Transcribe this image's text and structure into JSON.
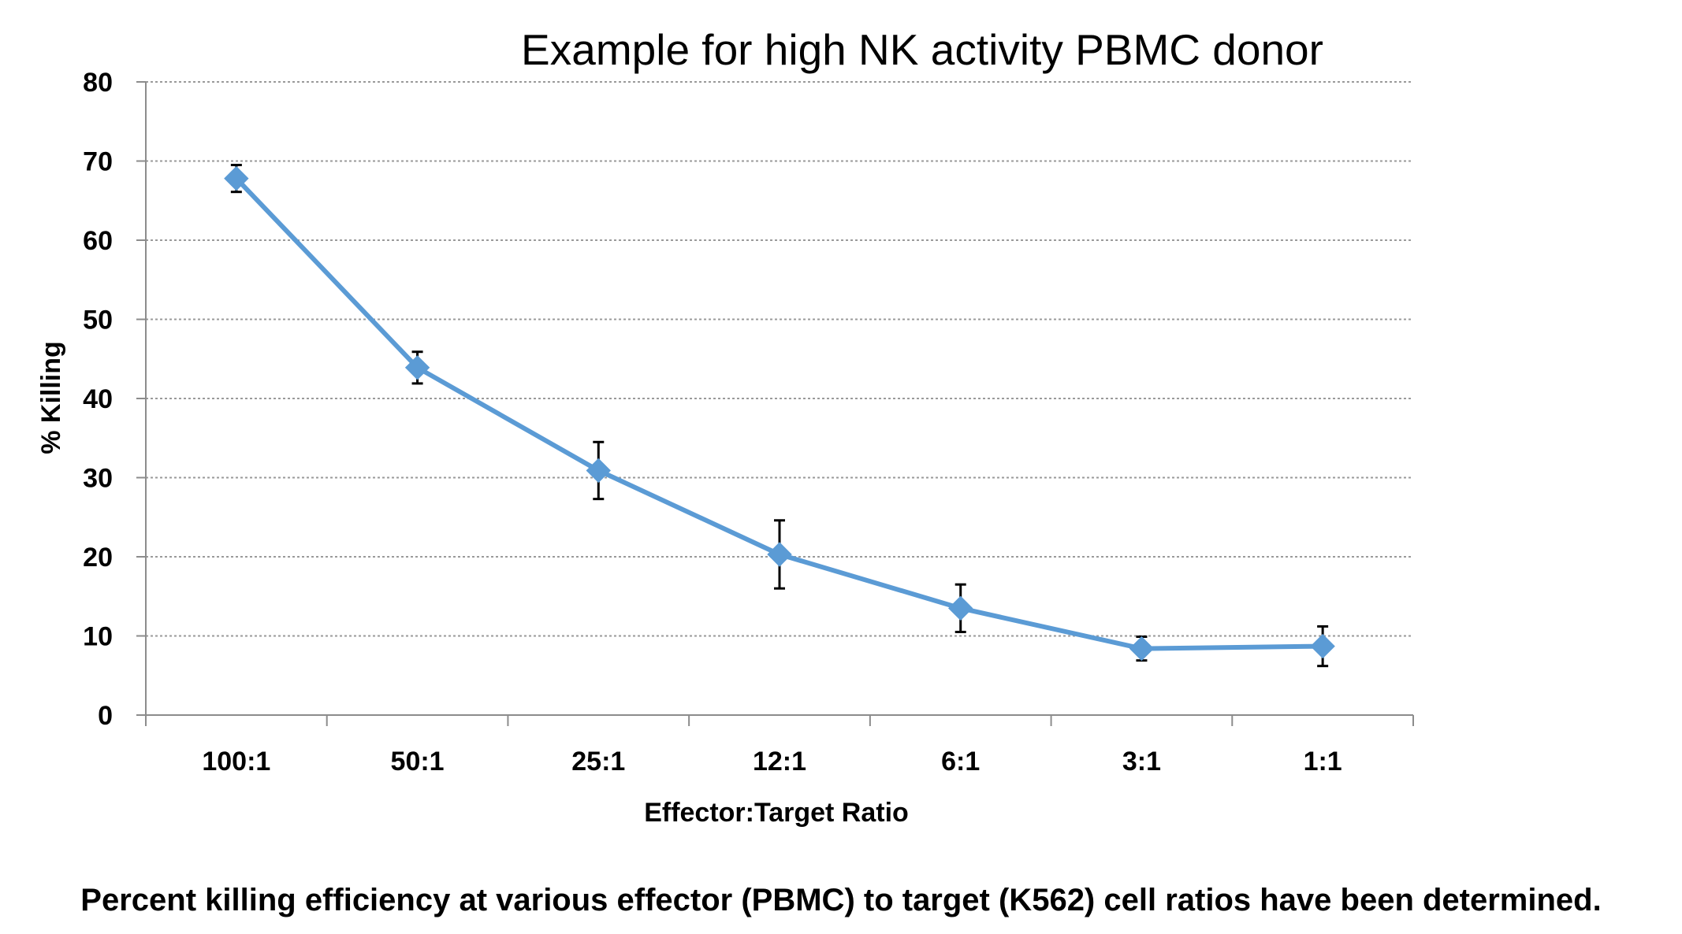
{
  "chart_data": {
    "type": "line",
    "title": "Example for high NK activity PBMC donor",
    "xlabel": "Effector:Target Ratio",
    "ylabel": "% Killing",
    "categories": [
      "100:1",
      "50:1",
      "25:1",
      "12:1",
      "6:1",
      "3:1",
      "1:1"
    ],
    "series": [
      {
        "values": [
          67.8,
          43.9,
          30.9,
          20.3,
          13.5,
          8.4,
          8.7
        ],
        "error": [
          1.7,
          2.0,
          3.6,
          4.3,
          3.0,
          1.5,
          2.5
        ],
        "color": "#5b9bd5"
      }
    ],
    "ylim": [
      0,
      80
    ],
    "yticks": [
      0,
      10,
      20,
      30,
      40,
      50,
      60,
      70,
      80
    ],
    "grid": true,
    "legend": "none"
  },
  "caption": "Percent killing efficiency at various effector (PBMC) to target (K562) cell ratios have been determined."
}
